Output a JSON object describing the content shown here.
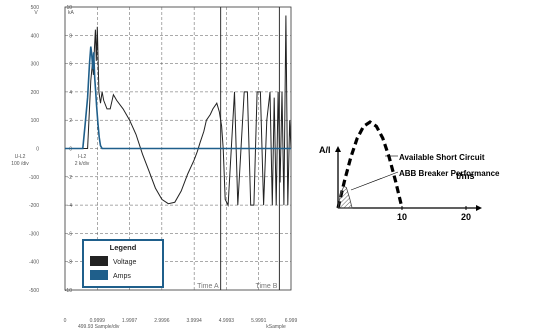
{
  "chart_data": [
    {
      "type": "line",
      "left_axis": {
        "label_top": "U-L2",
        "label_bottom": "100 /div",
        "unit": "V",
        "ticks": [
          500,
          400,
          300,
          200,
          100,
          0,
          -100,
          -200,
          -300,
          -400,
          -500
        ]
      },
      "right_axis": {
        "label_top": "I-L2",
        "label_bottom": "2 k/div",
        "unit": "kA",
        "ticks": [
          10,
          8,
          6,
          4,
          2,
          0,
          -2,
          -4,
          -6,
          -8,
          -10
        ]
      },
      "x_axis": {
        "ticks": [
          "0",
          "0.9999",
          "1.9997",
          "2.9996",
          "3.9994",
          "4.9993",
          "5.9991",
          "6.999"
        ],
        "label_left": "499.93 Sample/div",
        "label_right": "kSample",
        "range": [
          0,
          6.999
        ]
      },
      "ylim": [
        -500,
        500
      ],
      "grid": true,
      "markers": [
        {
          "label": "Time A",
          "x": 4.82
        },
        {
          "label": "Time B",
          "x": 6.64
        }
      ],
      "legend": {
        "title": "Legend",
        "placement": "bottom-left",
        "entries": [
          {
            "name": "Voltage",
            "color": "#222222"
          },
          {
            "name": "Amps",
            "color": "#1f5f8b"
          }
        ]
      },
      "series": [
        {
          "name": "Voltage",
          "color": "#222222",
          "x": [
            0.0,
            0.45,
            0.7,
            0.8,
            0.85,
            0.88,
            0.91,
            0.94,
            0.97,
            1.0,
            1.05,
            1.1,
            1.15,
            1.2,
            1.3,
            1.4,
            1.5,
            1.6,
            1.8,
            2.0,
            2.2,
            2.4,
            2.6,
            2.8,
            3.0,
            3.2,
            3.4,
            3.6,
            3.8,
            4.0,
            4.1,
            4.18,
            4.3,
            4.38,
            4.5,
            4.58,
            4.7,
            4.78,
            4.85,
            4.9,
            4.96,
            5.05,
            5.15,
            5.25,
            5.35,
            5.45,
            5.55,
            5.65,
            5.75,
            5.85,
            5.95,
            6.05,
            6.15,
            6.25,
            6.35,
            6.42,
            6.48,
            6.54,
            6.6,
            6.66,
            6.72,
            6.78,
            6.84,
            6.9,
            6.96,
            6.999
          ],
          "y": [
            0,
            0,
            0,
            240,
            300,
            260,
            350,
            420,
            310,
            430,
            200,
            160,
            200,
            170,
            140,
            140,
            190,
            170,
            140,
            100,
            50,
            -20,
            -80,
            -140,
            -180,
            -195,
            -190,
            -150,
            -90,
            -40,
            -10,
            20,
            60,
            100,
            120,
            140,
            160,
            130,
            80,
            0,
            -180,
            -200,
            0,
            200,
            -200,
            0,
            200,
            200,
            -200,
            -200,
            200,
            200,
            -200,
            100,
            200,
            -200,
            180,
            -200,
            200,
            -120,
            200,
            -200,
            470,
            -200,
            100,
            0
          ]
        },
        {
          "name": "Amps",
          "color": "#1f5f8b",
          "x": [
            0.0,
            0.45,
            0.55,
            0.62,
            0.7,
            0.76,
            0.8,
            0.83,
            0.86,
            0.89,
            0.92,
            0.95,
            0.98,
            1.02,
            1.06,
            1.1,
            1.15,
            1.3,
            2.0,
            3.0,
            4.0,
            5.0,
            6.0,
            6.999
          ],
          "y": [
            0,
            0,
            0,
            80,
            180,
            300,
            360,
            330,
            280,
            340,
            250,
            200,
            150,
            90,
            40,
            10,
            0,
            0,
            0,
            0,
            0,
            0,
            0,
            0
          ]
        }
      ]
    },
    {
      "type": "line",
      "ylabel": "A/I",
      "xlabel": "t/ms",
      "xticks": [
        "10",
        "20"
      ],
      "xlim": [
        0,
        24
      ],
      "ylim": [
        0,
        1.2
      ],
      "series": [
        {
          "name": "Available Short Circuit",
          "color": "#000000",
          "x": [
            0,
            1,
            2,
            3,
            4,
            5,
            6,
            7,
            8,
            9,
            10
          ],
          "y": [
            0,
            0.31,
            0.59,
            0.81,
            0.95,
            1.0,
            0.95,
            0.81,
            0.59,
            0.31,
            0
          ]
        },
        {
          "name": "ABB Breaker Performance",
          "color": "#444444",
          "x": [
            0,
            0.4,
            0.9,
            1.3,
            1.8,
            2.2
          ],
          "y": [
            0,
            0.17,
            0.25,
            0.24,
            0.12,
            0
          ]
        }
      ]
    }
  ]
}
